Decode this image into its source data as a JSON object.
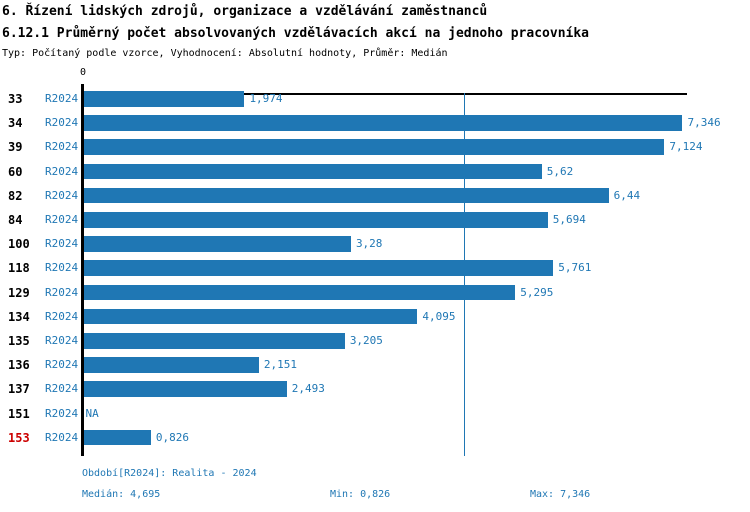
{
  "header": {
    "title": "6. Řízení lidských zdrojů, organizace a vzdělávání zaměstnanců",
    "subtitle": "6.12.1 Průměrný počet absolvovaných vzdělávacích akcí na jednoho pracovníka",
    "meta": "Typ: Počítaný podle vzorce, Vyhodnocení: Absolutní hodnoty, Průměr: Medián"
  },
  "chart_data": {
    "type": "bar",
    "orientation": "horizontal",
    "title": "6.12.1 Průměrný počet absolvovaných vzdělávacích akcí na jednoho pracovníka",
    "x_axis": {
      "tick_labels": [
        "0"
      ],
      "range": [
        0,
        7.42
      ],
      "grid": false
    },
    "categories": [
      "33",
      "34",
      "39",
      "60",
      "82",
      "84",
      "100",
      "118",
      "129",
      "134",
      "135",
      "136",
      "137",
      "151",
      "153"
    ],
    "series": [
      {
        "name": "R2024",
        "values": [
          1.974,
          7.346,
          7.124,
          5.62,
          6.44,
          5.694,
          3.28,
          5.761,
          5.295,
          4.095,
          3.205,
          2.151,
          2.493,
          null,
          0.826
        ],
        "value_labels": [
          "1,974",
          "7,346",
          "7,124",
          "5,62",
          "6,44",
          "5,694",
          "3,28",
          "5,761",
          "5,295",
          "4,095",
          "3,205",
          "2,151",
          "2,493",
          "NA",
          "0,826"
        ]
      }
    ],
    "median_line": {
      "value": 4.695
    },
    "highlighted_categories": [
      "153"
    ],
    "colors": {
      "bar": "#1F77B4",
      "text": "#1F77B4",
      "highlight": "#CC0000",
      "axis": "#000000"
    }
  },
  "footer": {
    "period": "Období[R2024]: Realita - 2024",
    "median": "Medián: 4,695",
    "min": "Min: 0,826",
    "max": "Max: 7,346"
  }
}
